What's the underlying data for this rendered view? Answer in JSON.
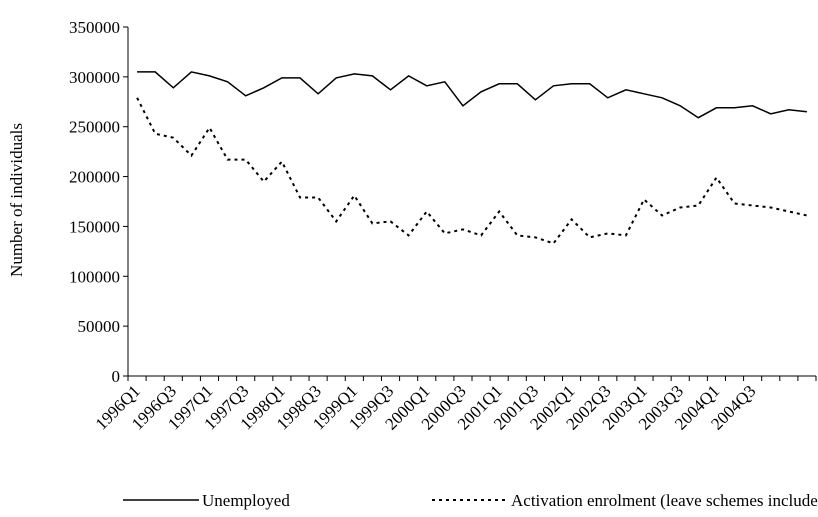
{
  "chart_data": {
    "type": "line",
    "y_label": "Number of individuals",
    "categories": [
      "1996Q1",
      null,
      "1996Q3",
      null,
      "1997Q1",
      null,
      "1997Q3",
      null,
      "1998Q1",
      null,
      "1998Q3",
      null,
      "1999Q1",
      null,
      "1999Q3",
      null,
      "2000Q1",
      null,
      "2000Q3",
      null,
      "2001Q1",
      null,
      "2001Q3",
      null,
      "2002Q1",
      null,
      "2002Q3",
      null,
      "2003Q1",
      null,
      "2003Q3",
      null,
      "2004Q1",
      null,
      "2004Q3",
      null,
      null,
      null
    ],
    "series": [
      {
        "name": "Unemployed",
        "color": "#000000",
        "line_style": "solid",
        "values": [
          305000,
          305000,
          289000,
          305000,
          301000,
          295000,
          281000,
          289000,
          299000,
          299000,
          283000,
          299000,
          303000,
          301000,
          287000,
          301000,
          291000,
          295000,
          271000,
          285000,
          293000,
          293000,
          277000,
          291000,
          293000,
          293000,
          279000,
          287000,
          283000,
          279000,
          271000,
          259000,
          269000,
          269000,
          271000,
          263000,
          267000,
          265000
        ]
      },
      {
        "name": "Activation enrolment (leave schemes included)",
        "color": "#000000",
        "line_style": "dotted",
        "values": [
          279000,
          243000,
          239000,
          221000,
          249000,
          217000,
          217000,
          195000,
          215000,
          179000,
          179000,
          155000,
          181000,
          153000,
          155000,
          141000,
          165000,
          143000,
          147000,
          141000,
          165000,
          141000,
          139000,
          133000,
          157000,
          139000,
          143000,
          141000,
          177000,
          161000,
          169000,
          171000,
          199000,
          173000,
          171000,
          169000,
          165000,
          161000
        ]
      }
    ],
    "ylim": [
      0,
      350000
    ],
    "yticks": [
      0,
      50000,
      100000,
      150000,
      200000,
      250000,
      300000,
      350000
    ]
  }
}
